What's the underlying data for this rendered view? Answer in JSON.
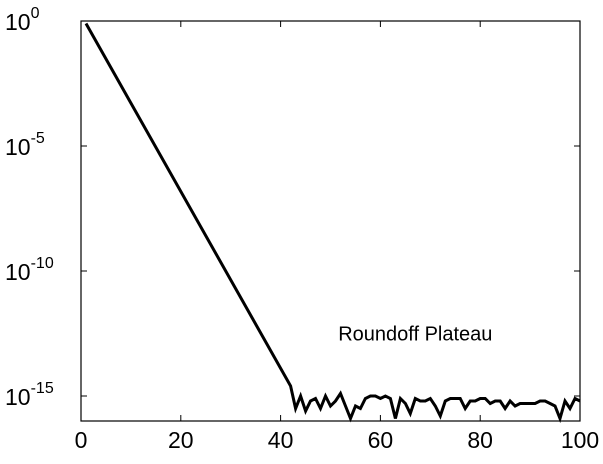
{
  "chart_data": {
    "type": "line",
    "title": "",
    "xlabel": "",
    "ylabel": "",
    "xlim": [
      0,
      100
    ],
    "ylim_log10": [
      -16,
      0
    ],
    "y_scale": "log",
    "grid": false,
    "x_ticks": [
      {
        "value": 0,
        "label": "0"
      },
      {
        "value": 20,
        "label": "20"
      },
      {
        "value": 40,
        "label": "40"
      },
      {
        "value": 60,
        "label": "60"
      },
      {
        "value": 80,
        "label": "80"
      },
      {
        "value": 100,
        "label": "100"
      }
    ],
    "y_ticks": [
      {
        "value": 0,
        "base": "10",
        "exp": "0"
      },
      {
        "value": -5,
        "base": "10",
        "exp": "-5"
      },
      {
        "value": -10,
        "base": "10",
        "exp": "-10"
      },
      {
        "value": -15,
        "base": "10",
        "exp": "-15"
      }
    ],
    "annotation": {
      "text": "Roundoff Plateau",
      "x": 67,
      "y_log10": -12.5
    },
    "series": [
      {
        "color": "#000000",
        "x": [
          1,
          42,
          43,
          44,
          45,
          46,
          47,
          48,
          49,
          50,
          51,
          52,
          53,
          54,
          55,
          56,
          57,
          58,
          59,
          60,
          61,
          62,
          63,
          64,
          65,
          66,
          67,
          68,
          69,
          70,
          71,
          72,
          73,
          74,
          75,
          76,
          77,
          78,
          79,
          80,
          81,
          82,
          83,
          84,
          85,
          86,
          87,
          88,
          89,
          90,
          91,
          92,
          93,
          94,
          95,
          96,
          97,
          98,
          99,
          100
        ],
        "y_log10": [
          -0.1,
          -14.6,
          -15.5,
          -15.0,
          -15.6,
          -15.2,
          -15.1,
          -15.5,
          -15.0,
          -15.4,
          -15.2,
          -14.9,
          -15.4,
          -15.9,
          -15.4,
          -15.5,
          -15.1,
          -15.0,
          -15.0,
          -15.1,
          -15.0,
          -15.1,
          -15.9,
          -15.1,
          -15.3,
          -15.7,
          -15.1,
          -15.2,
          -15.2,
          -15.1,
          -15.4,
          -15.8,
          -15.2,
          -15.1,
          -15.1,
          -15.1,
          -15.5,
          -15.2,
          -15.2,
          -15.1,
          -15.1,
          -15.3,
          -15.2,
          -15.2,
          -15.5,
          -15.2,
          -15.4,
          -15.3,
          -15.3,
          -15.3,
          -15.3,
          -15.2,
          -15.2,
          -15.3,
          -15.4,
          -15.9,
          -15.2,
          -15.5,
          -15.1,
          -15.2
        ]
      }
    ]
  }
}
